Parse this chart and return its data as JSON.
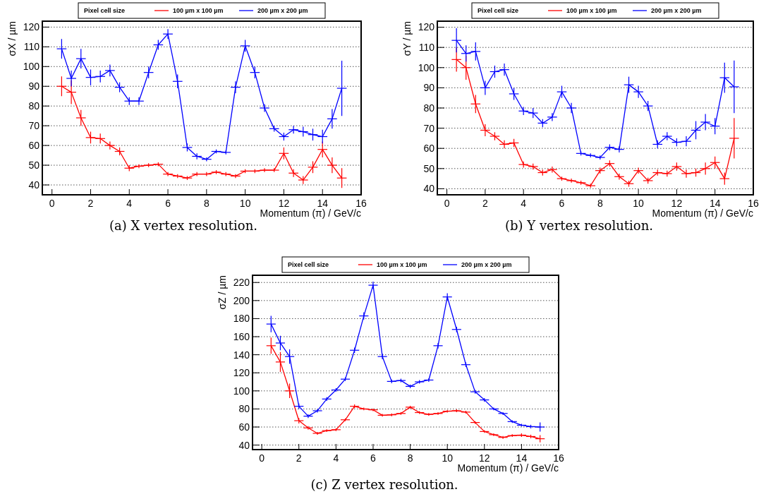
{
  "chart_data": [
    {
      "type": "line",
      "ylabel": "σX / µm",
      "xlabel": "Momentum (π) / GeV/c",
      "legend_title": "Pixel cell size",
      "legend": "top",
      "grid": "y",
      "marker": "none",
      "xlim": [
        -0.5,
        16
      ],
      "ylim": [
        35,
        123
      ],
      "xticks": [
        0,
        2,
        4,
        6,
        8,
        10,
        12,
        14,
        16
      ],
      "yticks": [
        40,
        50,
        60,
        70,
        80,
        90,
        100,
        110,
        120
      ],
      "annotations": [
        "(a) X vertex resolution."
      ],
      "x": [
        0.5,
        1,
        1.5,
        2,
        2.5,
        3,
        3.5,
        4,
        4.5,
        5,
        5.5,
        6,
        6.5,
        7,
        7.5,
        8,
        8.5,
        9,
        9.5,
        10,
        10.5,
        11,
        11.5,
        12,
        12.5,
        13,
        13.5,
        14,
        14.5,
        15
      ],
      "series": [
        {
          "name": "100 µm x 100 µm",
          "color": "#ff0000",
          "values": [
            90,
            87,
            74,
            64,
            63.5,
            60,
            57,
            48.5,
            49.5,
            50,
            50.5,
            45.5,
            44.5,
            43.5,
            45.5,
            45.5,
            46.5,
            45.5,
            44.5,
            47,
            47,
            47.5,
            47.5,
            56,
            46,
            42.5,
            49,
            58,
            50,
            43.5
          ],
          "errors": [
            5,
            6,
            4,
            3,
            2.5,
            2,
            2,
            1.5,
            1,
            1,
            1,
            1,
            1,
            1,
            1,
            1,
            1,
            1,
            1,
            1,
            1,
            1,
            1,
            3,
            2,
            2,
            3,
            4,
            4,
            5
          ],
          "xerrors": [
            0.25,
            0.25,
            0.25,
            0.25,
            0.25,
            0.25,
            0.25,
            0.25,
            0.25,
            0.25,
            0.25,
            0.25,
            0.25,
            0.25,
            0.25,
            0.25,
            0.25,
            0.25,
            0.25,
            0.25,
            0.25,
            0.25,
            0.25,
            0.25,
            0.25,
            0.25,
            0.25,
            0.25,
            0.25,
            0.25
          ]
        },
        {
          "name": "200 µm x 200 µm",
          "color": "#0000ff",
          "values": [
            109,
            94,
            104,
            94.5,
            95,
            98,
            89.5,
            82.5,
            82.5,
            97,
            111,
            116.5,
            92.5,
            59,
            54.5,
            53,
            57,
            56.5,
            89.5,
            110.5,
            97,
            79,
            68.5,
            64.5,
            68,
            67,
            65.5,
            64.5,
            73.5,
            89
          ],
          "errors": [
            5,
            4,
            5,
            4,
            3,
            3,
            2.5,
            2,
            2,
            3,
            2.5,
            2.5,
            3.5,
            2,
            1.5,
            1,
            1,
            1,
            3,
            3,
            3,
            2,
            1.5,
            2,
            2,
            2.5,
            3,
            3.5,
            5,
            14
          ],
          "xerrors": [
            0.25,
            0.25,
            0.25,
            0.25,
            0.25,
            0.25,
            0.25,
            0.25,
            0.25,
            0.25,
            0.25,
            0.25,
            0.25,
            0.25,
            0.25,
            0.25,
            0.25,
            0.25,
            0.25,
            0.25,
            0.25,
            0.25,
            0.25,
            0.25,
            0.25,
            0.25,
            0.25,
            0.25,
            0.25,
            0.25
          ]
        }
      ]
    },
    {
      "type": "line",
      "ylabel": "σY / µm",
      "xlabel": "Momentum (π) / GeV/c",
      "legend_title": "Pixel cell size",
      "legend": "top",
      "grid": "y",
      "marker": "none",
      "xlim": [
        -0.5,
        16
      ],
      "ylim": [
        37,
        123
      ],
      "xticks": [
        0,
        2,
        4,
        6,
        8,
        10,
        12,
        14,
        16
      ],
      "yticks": [
        40,
        50,
        60,
        70,
        80,
        90,
        100,
        110,
        120
      ],
      "annotations": [
        "(b) Y vertex resolution."
      ],
      "x": [
        0.5,
        1,
        1.5,
        2,
        2.5,
        3,
        3.5,
        4,
        4.5,
        5,
        5.5,
        6,
        6.5,
        7,
        7.5,
        8,
        8.5,
        9,
        9.5,
        10,
        10.5,
        11,
        11.5,
        12,
        12.5,
        13,
        13.5,
        14,
        14.5,
        15
      ],
      "series": [
        {
          "name": "100 µm x 100 µm",
          "color": "#ff0000",
          "values": [
            104,
            100,
            82,
            69,
            66,
            62,
            62.7,
            52,
            51,
            48,
            49.5,
            45,
            44,
            43,
            41.5,
            49,
            52.5,
            46,
            42.5,
            49,
            44,
            48,
            47.5,
            51,
            47.5,
            48,
            50,
            53,
            45,
            65
          ],
          "errors": [
            6,
            6,
            4.5,
            3,
            2,
            2,
            2,
            1.5,
            1.5,
            1.5,
            1.5,
            1,
            1,
            1,
            1,
            1.5,
            1.5,
            1.5,
            1.5,
            1.5,
            1.5,
            1.5,
            1.5,
            2,
            2,
            2,
            3,
            3,
            3,
            10
          ],
          "xerrors": [
            0.25,
            0.25,
            0.25,
            0.25,
            0.25,
            0.25,
            0.25,
            0.25,
            0.25,
            0.25,
            0.25,
            0.25,
            0.25,
            0.25,
            0.25,
            0.25,
            0.25,
            0.25,
            0.25,
            0.25,
            0.25,
            0.25,
            0.25,
            0.25,
            0.25,
            0.25,
            0.25,
            0.25,
            0.25,
            0.25
          ]
        },
        {
          "name": "200 µm x 200 µm",
          "color": "#0000ff",
          "values": [
            113.5,
            107,
            108,
            90,
            98,
            99,
            87,
            78.5,
            77.5,
            72.5,
            75.5,
            88,
            80,
            57.5,
            56.5,
            55.5,
            60.5,
            59.5,
            91.5,
            88,
            81,
            62,
            66,
            63,
            63.5,
            69,
            73,
            71,
            95,
            90.5
          ],
          "errors": [
            6,
            4,
            4.5,
            3.5,
            3,
            3,
            3,
            2,
            2.5,
            2,
            2,
            3,
            2.5,
            1,
            1,
            1,
            1.5,
            1.5,
            4,
            3,
            2.5,
            2,
            2,
            2,
            2.5,
            4.5,
            4,
            4,
            7.5,
            13
          ],
          "xerrors": [
            0.25,
            0.25,
            0.25,
            0.25,
            0.25,
            0.25,
            0.25,
            0.25,
            0.25,
            0.25,
            0.25,
            0.25,
            0.25,
            0.25,
            0.25,
            0.25,
            0.25,
            0.25,
            0.25,
            0.25,
            0.25,
            0.25,
            0.25,
            0.25,
            0.25,
            0.25,
            0.25,
            0.25,
            0.25,
            0.25
          ]
        }
      ]
    },
    {
      "type": "line",
      "ylabel": "σZ / µm",
      "xlabel": "Momentum (π) / GeV/c",
      "legend_title": "Pixel cell size",
      "legend": "top",
      "grid": "y",
      "marker": "none",
      "xlim": [
        -0.5,
        16
      ],
      "ylim": [
        35,
        228
      ],
      "xticks": [
        0,
        2,
        4,
        6,
        8,
        10,
        12,
        14,
        16
      ],
      "yticks": [
        40,
        60,
        80,
        100,
        120,
        140,
        160,
        180,
        200,
        220
      ],
      "annotations": [
        "(c) Z vertex resolution."
      ],
      "x": [
        0.5,
        1,
        1.5,
        2,
        2.5,
        3,
        3.5,
        4,
        4.5,
        5,
        5.5,
        6,
        6.5,
        7,
        7.5,
        8,
        8.5,
        9,
        9.5,
        10,
        10.5,
        11,
        11.5,
        12,
        12.5,
        13,
        13.5,
        14,
        14.5,
        15
      ],
      "series": [
        {
          "name": "100 µm x 100 µm",
          "color": "#ff0000",
          "values": [
            150,
            132,
            100,
            67,
            59,
            53,
            56,
            57,
            68,
            83,
            80,
            79,
            73,
            73.5,
            75,
            82,
            76,
            74,
            75,
            77.5,
            78,
            76.5,
            65,
            55,
            51.5,
            48.5,
            50.5,
            51,
            49.5,
            47
          ],
          "errors": [
            9,
            11,
            8,
            3,
            2,
            1.5,
            1.5,
            1.5,
            1.5,
            2,
            1.5,
            1.5,
            1.5,
            1.5,
            1.5,
            1.5,
            1.5,
            1.5,
            1.5,
            1.5,
            1.5,
            1.5,
            1.5,
            1.5,
            1.5,
            1.5,
            1.5,
            2,
            2,
            4
          ],
          "xerrors": [
            0.25,
            0.25,
            0.25,
            0.25,
            0.25,
            0.25,
            0.25,
            0.25,
            0.25,
            0.25,
            0.25,
            0.25,
            0.25,
            0.25,
            0.25,
            0.25,
            0.25,
            0.25,
            0.25,
            0.25,
            0.25,
            0.25,
            0.25,
            0.25,
            0.25,
            0.25,
            0.25,
            0.25,
            0.25,
            0.25
          ]
        },
        {
          "name": "200 µm x 200 µm",
          "color": "#0000ff",
          "values": [
            174,
            153,
            138,
            83,
            72,
            78,
            91,
            101,
            113,
            145,
            183,
            217,
            138,
            110.5,
            111.5,
            105,
            110,
            112,
            150,
            204,
            168,
            129,
            99,
            90,
            80,
            75,
            66,
            62,
            60.5,
            60
          ],
          "errors": [
            9,
            8,
            8,
            3,
            2,
            2,
            2,
            2,
            2,
            3,
            4,
            4,
            3,
            2,
            2,
            2,
            2,
            2,
            3,
            4,
            3,
            2.5,
            2,
            2,
            1.5,
            1.5,
            1.5,
            1.5,
            2,
            5
          ],
          "xerrors": [
            0.25,
            0.25,
            0.25,
            0.25,
            0.25,
            0.25,
            0.25,
            0.25,
            0.25,
            0.25,
            0.25,
            0.25,
            0.25,
            0.25,
            0.25,
            0.25,
            0.25,
            0.25,
            0.25,
            0.25,
            0.25,
            0.25,
            0.25,
            0.25,
            0.25,
            0.25,
            0.25,
            0.25,
            0.25,
            0.25
          ]
        }
      ]
    }
  ]
}
